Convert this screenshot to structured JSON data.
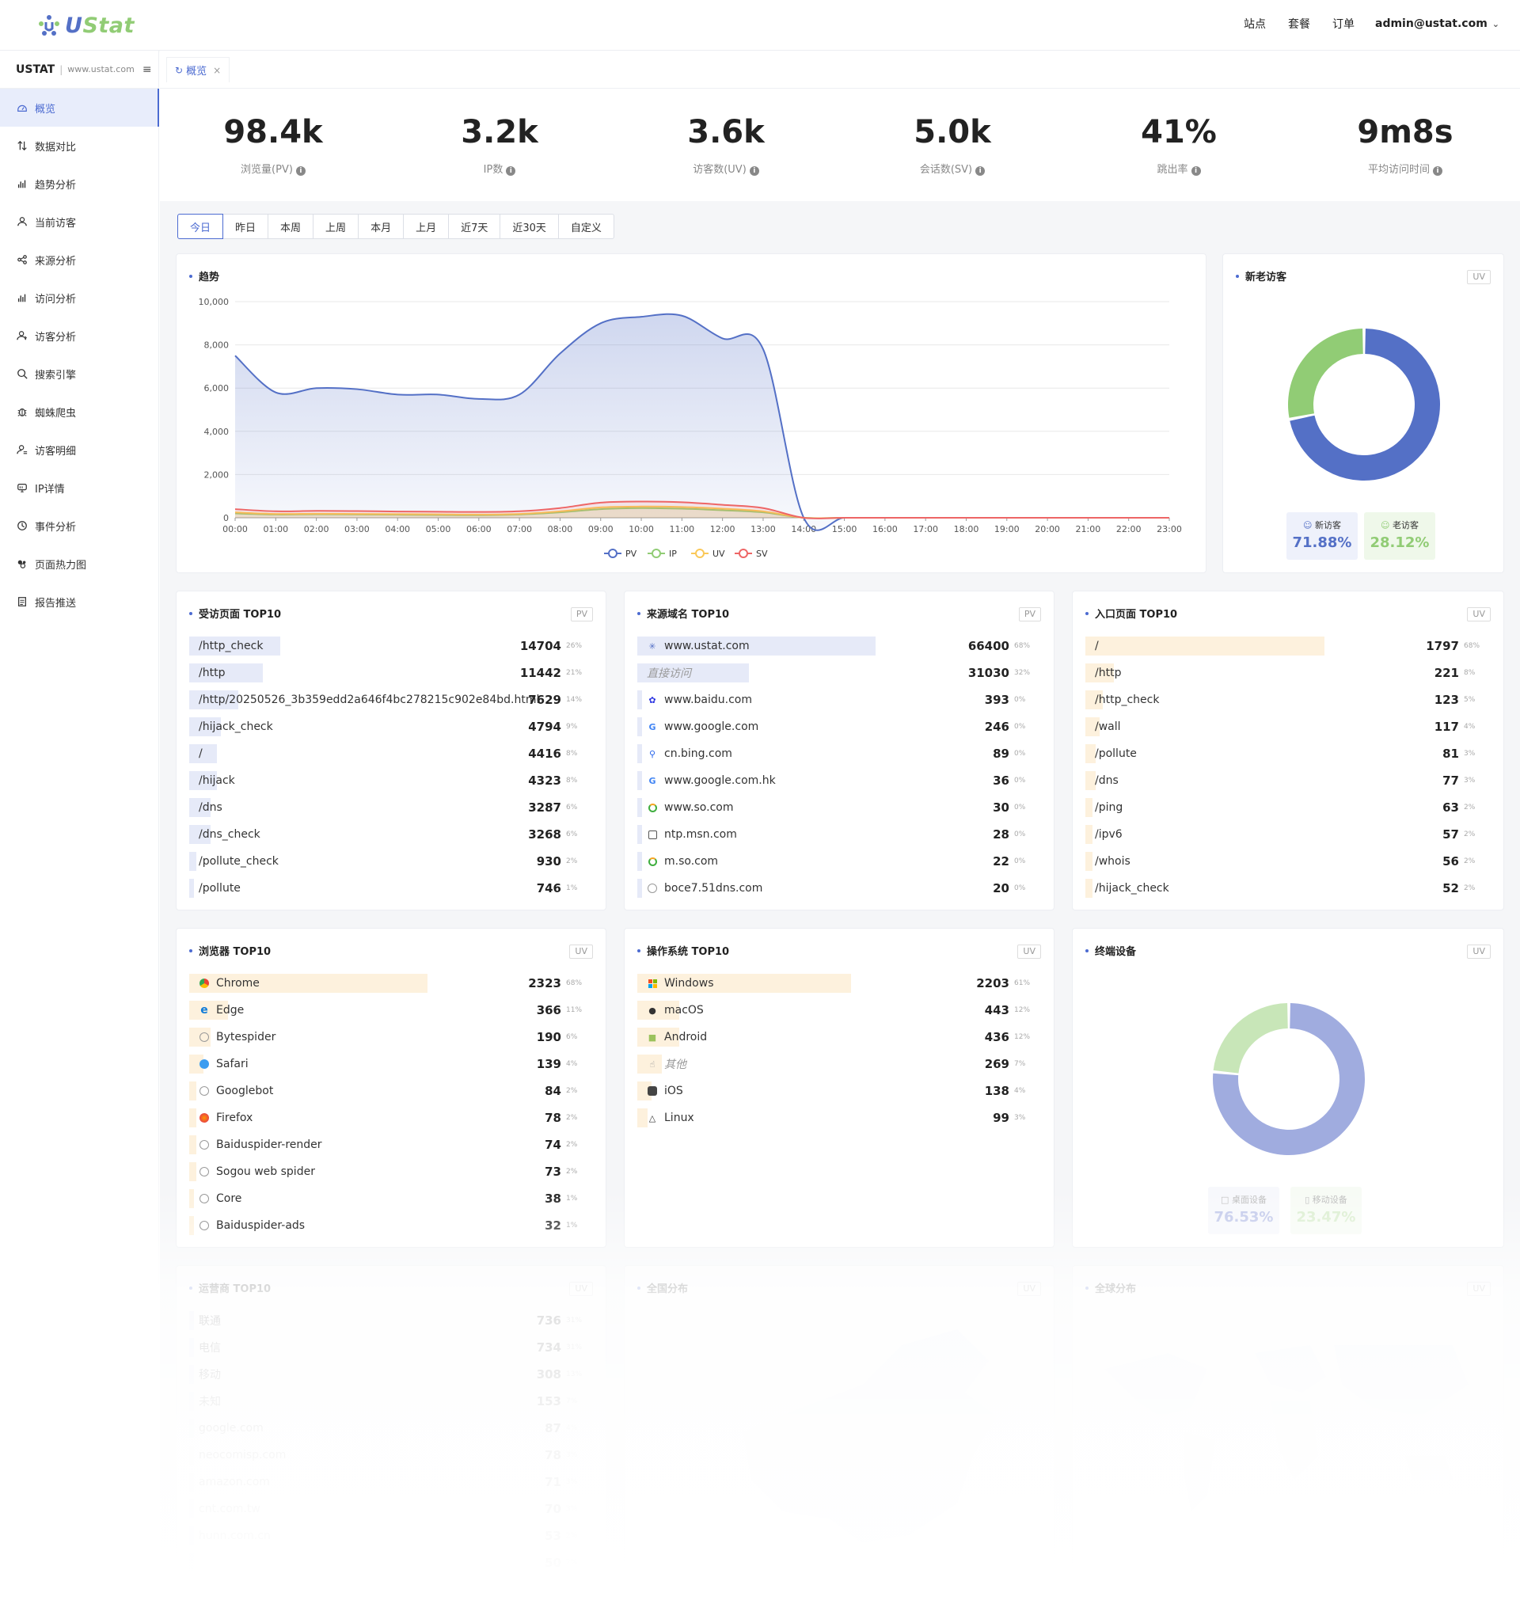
{
  "header": {
    "logo_u": "U",
    "logo_stat": "Stat",
    "nav": [
      "站点",
      "套餐",
      "订单"
    ],
    "user": "admin@ustat.com"
  },
  "sidebar": {
    "site_name": "USTAT",
    "site_sep": "|",
    "site_domain": "www.ustat.com",
    "items": [
      {
        "label": "概览",
        "icon": "dashboard-icon"
      },
      {
        "label": "数据对比",
        "icon": "compare-icon"
      },
      {
        "label": "趋势分析",
        "icon": "bar-chart-icon"
      },
      {
        "label": "当前访客",
        "icon": "user-icon"
      },
      {
        "label": "来源分析",
        "icon": "share-icon"
      },
      {
        "label": "访问分析",
        "icon": "bar-chart-icon"
      },
      {
        "label": "访客分析",
        "icon": "users-icon"
      },
      {
        "label": "搜索引擎",
        "icon": "search-icon"
      },
      {
        "label": "蜘蛛爬虫",
        "icon": "bug-icon"
      },
      {
        "label": "访客明细",
        "icon": "user-detail-icon"
      },
      {
        "label": "IP详情",
        "icon": "ip-icon"
      },
      {
        "label": "事件分析",
        "icon": "clock-icon"
      },
      {
        "label": "页面热力图",
        "icon": "heatmap-icon"
      },
      {
        "label": "报告推送",
        "icon": "report-icon"
      }
    ]
  },
  "tabs": {
    "overview": "概览"
  },
  "kpis": [
    {
      "value": "98.4k",
      "label": "浏览量(PV)"
    },
    {
      "value": "3.2k",
      "label": "IP数"
    },
    {
      "value": "3.6k",
      "label": "访客数(UV)"
    },
    {
      "value": "5.0k",
      "label": "会话数(SV)"
    },
    {
      "value": "41%",
      "label": "跳出率"
    },
    {
      "value": "9m8s",
      "label": "平均访问时间"
    }
  ],
  "ranges": [
    "今日",
    "昨日",
    "本周",
    "上周",
    "本月",
    "上月",
    "近7天",
    "近30天",
    "自定义"
  ],
  "trend": {
    "title": "趋势",
    "legend": [
      "PV",
      "IP",
      "UV",
      "SV"
    ]
  },
  "chart_data": [
    {
      "type": "area",
      "title": "趋势",
      "x": [
        "00:00",
        "01:00",
        "02:00",
        "03:00",
        "04:00",
        "05:00",
        "06:00",
        "07:00",
        "08:00",
        "09:00",
        "10:00",
        "11:00",
        "12:00",
        "13:00",
        "14:00",
        "15:00",
        "16:00",
        "17:00",
        "18:00",
        "19:00",
        "20:00",
        "21:00",
        "22:00",
        "23:00"
      ],
      "ylim": [
        0,
        10000
      ],
      "yticks": [
        "0",
        "2,000",
        "4,000",
        "6,000",
        "8,000",
        "10,000"
      ],
      "series": [
        {
          "name": "PV",
          "color": "#5470c6",
          "values": [
            7500,
            5800,
            6000,
            5950,
            5700,
            5700,
            5500,
            5700,
            7600,
            9000,
            9300,
            9350,
            8300,
            7800,
            0,
            0,
            0,
            0,
            0,
            0,
            0,
            0,
            0,
            0
          ]
        },
        {
          "name": "IP",
          "color": "#91cc75",
          "values": [
            200,
            150,
            160,
            150,
            140,
            130,
            120,
            150,
            250,
            400,
            450,
            420,
            350,
            250,
            0,
            0,
            0,
            0,
            0,
            0,
            0,
            0,
            0,
            0
          ]
        },
        {
          "name": "UV",
          "color": "#fac858",
          "values": [
            250,
            180,
            190,
            180,
            170,
            160,
            150,
            180,
            300,
            480,
            520,
            500,
            420,
            300,
            0,
            0,
            0,
            0,
            0,
            0,
            0,
            0,
            0,
            0
          ]
        },
        {
          "name": "SV",
          "color": "#ee6666",
          "values": [
            400,
            300,
            320,
            310,
            290,
            280,
            270,
            300,
            450,
            700,
            750,
            720,
            600,
            450,
            0,
            0,
            0,
            0,
            0,
            0,
            0,
            0,
            0,
            0
          ]
        }
      ],
      "grid": true,
      "legend": "bottom"
    },
    {
      "type": "pie",
      "title": "新老访客",
      "series": [
        {
          "name": "新访客",
          "value": 71.88,
          "color": "#5470c6"
        },
        {
          "name": "老访客",
          "value": 28.12,
          "color": "#91cc75"
        }
      ]
    },
    {
      "type": "pie",
      "title": "终端设备",
      "series": [
        {
          "name": "桌面设备",
          "value": 76.53,
          "color": "#a0acdf"
        },
        {
          "name": "移动设备",
          "value": 23.47,
          "color": "#c8e6b8"
        }
      ]
    }
  ],
  "visitors": {
    "title": "新老访客",
    "badge": "UV",
    "new_label": "新访客",
    "new_value": "71.88%",
    "old_label": "老访客",
    "old_value": "28.12%"
  },
  "pages": {
    "title": "受访页面 TOP10",
    "badge": "PV",
    "bar_color": "#e6eaf8",
    "rows": [
      {
        "label": "/http_check",
        "value": "14704",
        "pct": "26%",
        "share": 0.26
      },
      {
        "label": "/http",
        "value": "11442",
        "pct": "21%",
        "share": 0.21
      },
      {
        "label": "/http/20250526_3b359edd2a646f4bc278215c902e84bd.html",
        "value": "7629",
        "pct": "14%",
        "share": 0.14
      },
      {
        "label": "/hijack_check",
        "value": "4794",
        "pct": "9%",
        "share": 0.09
      },
      {
        "label": "/",
        "value": "4416",
        "pct": "8%",
        "share": 0.08
      },
      {
        "label": "/hijack",
        "value": "4323",
        "pct": "8%",
        "share": 0.08
      },
      {
        "label": "/dns",
        "value": "3287",
        "pct": "6%",
        "share": 0.06
      },
      {
        "label": "/dns_check",
        "value": "3268",
        "pct": "6%",
        "share": 0.06
      },
      {
        "label": "/pollute_check",
        "value": "930",
        "pct": "2%",
        "share": 0.02
      },
      {
        "label": "/pollute",
        "value": "746",
        "pct": "1%",
        "share": 0.01
      }
    ]
  },
  "domains": {
    "title": "来源域名 TOP10",
    "badge": "PV",
    "bar_color": "#e6eaf8",
    "rows": [
      {
        "label": "www.ustat.com",
        "value": "66400",
        "pct": "68%",
        "share": 0.68,
        "icon": "ustat-icon"
      },
      {
        "label": "直接访问",
        "value": "31030",
        "pct": "32%",
        "share": 0.32,
        "icon": "",
        "italic": true
      },
      {
        "label": "www.baidu.com",
        "value": "393",
        "pct": "0%",
        "share": 0,
        "icon": "baidu-icon"
      },
      {
        "label": "www.google.com",
        "value": "246",
        "pct": "0%",
        "share": 0,
        "icon": "google-icon"
      },
      {
        "label": "cn.bing.com",
        "value": "89",
        "pct": "0%",
        "share": 0,
        "icon": "bing-icon"
      },
      {
        "label": "www.google.com.hk",
        "value": "36",
        "pct": "0%",
        "share": 0,
        "icon": "google-icon"
      },
      {
        "label": "www.so.com",
        "value": "30",
        "pct": "0%",
        "share": 0,
        "icon": "so-icon"
      },
      {
        "label": "ntp.msn.com",
        "value": "28",
        "pct": "0%",
        "share": 0,
        "icon": "msn-icon"
      },
      {
        "label": "m.so.com",
        "value": "22",
        "pct": "0%",
        "share": 0,
        "icon": "so-icon"
      },
      {
        "label": "boce7.51dns.com",
        "value": "20",
        "pct": "0%",
        "share": 0,
        "icon": "globe-icon"
      }
    ]
  },
  "entries": {
    "title": "入口页面 TOP10",
    "badge": "UV",
    "bar_color": "#fdf1dd",
    "rows": [
      {
        "label": "/",
        "value": "1797",
        "pct": "68%",
        "share": 0.68
      },
      {
        "label": "/http",
        "value": "221",
        "pct": "8%",
        "share": 0.08
      },
      {
        "label": "/http_check",
        "value": "123",
        "pct": "5%",
        "share": 0.05
      },
      {
        "label": "/wall",
        "value": "117",
        "pct": "4%",
        "share": 0.04
      },
      {
        "label": "/pollute",
        "value": "81",
        "pct": "3%",
        "share": 0.03
      },
      {
        "label": "/dns",
        "value": "77",
        "pct": "3%",
        "share": 0.03
      },
      {
        "label": "/ping",
        "value": "63",
        "pct": "2%",
        "share": 0.02
      },
      {
        "label": "/ipv6",
        "value": "57",
        "pct": "2%",
        "share": 0.02
      },
      {
        "label": "/whois",
        "value": "56",
        "pct": "2%",
        "share": 0.02
      },
      {
        "label": "/hijack_check",
        "value": "52",
        "pct": "2%",
        "share": 0.02
      }
    ]
  },
  "browsers": {
    "title": "浏览器 TOP10",
    "badge": "UV",
    "bar_color": "#fdf1dd",
    "rows": [
      {
        "label": "Chrome",
        "value": "2323",
        "pct": "68%",
        "share": 0.68,
        "icon": "chrome-icon"
      },
      {
        "label": "Edge",
        "value": "366",
        "pct": "11%",
        "share": 0.11,
        "icon": "edge-icon"
      },
      {
        "label": "Bytespider",
        "value": "190",
        "pct": "6%",
        "share": 0.06,
        "icon": "globe-icon"
      },
      {
        "label": "Safari",
        "value": "139",
        "pct": "4%",
        "share": 0.04,
        "icon": "safari-icon"
      },
      {
        "label": "Googlebot",
        "value": "84",
        "pct": "2%",
        "share": 0.02,
        "icon": "globe-icon"
      },
      {
        "label": "Firefox",
        "value": "78",
        "pct": "2%",
        "share": 0.02,
        "icon": "firefox-icon"
      },
      {
        "label": "Baiduspider-render",
        "value": "74",
        "pct": "2%",
        "share": 0.02,
        "icon": "globe-icon"
      },
      {
        "label": "Sogou web spider",
        "value": "73",
        "pct": "2%",
        "share": 0.02,
        "icon": "globe-icon"
      },
      {
        "label": "Core",
        "value": "38",
        "pct": "1%",
        "share": 0.01,
        "icon": "globe-icon"
      },
      {
        "label": "Baiduspider-ads",
        "value": "32",
        "pct": "1%",
        "share": 0.01,
        "icon": "globe-icon"
      }
    ]
  },
  "os": {
    "title": "操作系统 TOP10",
    "badge": "UV",
    "bar_color": "#fdf1dd",
    "rows": [
      {
        "label": "Windows",
        "value": "2203",
        "pct": "61%",
        "share": 0.61,
        "icon": "windows-icon"
      },
      {
        "label": "macOS",
        "value": "443",
        "pct": "12%",
        "share": 0.12,
        "icon": "apple-icon"
      },
      {
        "label": "Android",
        "value": "436",
        "pct": "12%",
        "share": 0.12,
        "icon": "android-icon"
      },
      {
        "label": "其他",
        "value": "269",
        "pct": "7%",
        "share": 0.07,
        "icon": "pointer-icon",
        "italic": true
      },
      {
        "label": "iOS",
        "value": "138",
        "pct": "4%",
        "share": 0.04,
        "icon": "ios-icon"
      },
      {
        "label": "Linux",
        "value": "99",
        "pct": "3%",
        "share": 0.03,
        "icon": "linux-icon"
      }
    ]
  },
  "devices": {
    "title": "终端设备",
    "badge": "UV",
    "desktop_label": "桌面设备",
    "desktop_value": "76.53%",
    "mobile_label": "移动设备",
    "mobile_value": "23.47%"
  },
  "carriers": {
    "title": "运营商 TOP10",
    "badge": "UV",
    "rows": [
      {
        "label": "联通",
        "value": "736",
        "pct": "31%"
      },
      {
        "label": "电信",
        "value": "734",
        "pct": "31%"
      },
      {
        "label": "移动",
        "value": "308",
        "pct": "13%"
      },
      {
        "label": "未知",
        "value": "153",
        "pct": "7%"
      },
      {
        "label": "google.com",
        "value": "87",
        "pct": "4%"
      },
      {
        "label": "neocomisp.com",
        "value": "78",
        "pct": "3%"
      },
      {
        "label": "amazon.com",
        "value": "71",
        "pct": "3%"
      },
      {
        "label": "cnt.com.tw",
        "value": "70",
        "pct": "3%"
      },
      {
        "label": "hunn.com.cn",
        "value": "53",
        "pct": "2%"
      },
      {
        "label": "",
        "value": "50",
        "pct": "2%"
      }
    ]
  },
  "china_map": {
    "title": "全国分布",
    "badge": "UV"
  },
  "world_map": {
    "title": "全球分布",
    "badge": "UV"
  }
}
